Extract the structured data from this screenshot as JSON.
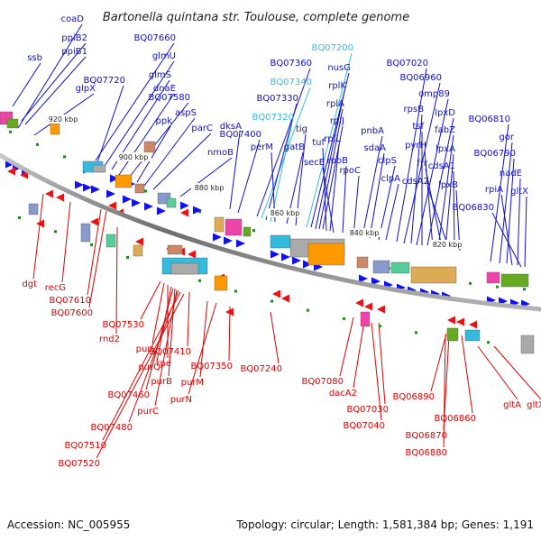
{
  "title": "Bartonella quintana str. Toulouse, complete genome",
  "footer": {
    "accession": "Accession: NC_005955",
    "summary": "Topology: circular; Length: 1,581,384 bp; Genes: 1,191"
  },
  "colors": {
    "forward_label": "#1010c8",
    "reverse_label": "#dd0000",
    "highlight_label": "#33bbee",
    "backbone": "#808080"
  },
  "kbp_ticks": [
    "920 kbp",
    "900 kbp",
    "880 kbp",
    "860 kbp",
    "840 kbp",
    "820 kbp"
  ],
  "forward_genes": [
    "coaD",
    "ssb",
    "ppiB2",
    "ppiB1",
    "glpX",
    "BQ07660",
    "BQ07720",
    "glmU",
    "glmS",
    "dnaE",
    "BQ07580",
    "ppk",
    "aspS",
    "parC",
    "nmoB",
    "dksA",
    "BQ07400",
    "BQ07360",
    "BQ07340",
    "BQ07330",
    "BQ07320",
    "perM",
    "gatB",
    "tig",
    "BQ07200",
    "nusG",
    "rplK",
    "rplA",
    "rplJ",
    "tuf",
    "rplL",
    "secE",
    "rpoB",
    "rpoC",
    "pnbA",
    "sdaA",
    "clpS",
    "clpA",
    "BQ07020",
    "BQ06960",
    "rpsB",
    "omp89",
    "tsf",
    "lpxD",
    "pyrH",
    "fabZ",
    "frr",
    "lpxA",
    "cdsA2",
    "cdsA1",
    "lpxB",
    "BQ06810",
    "gor",
    "BQ06790",
    "rpiA",
    "nadE",
    "BQ06830",
    "gltX"
  ],
  "highlight_genes": [
    "BQ07200",
    "BQ07340",
    "BQ07320"
  ],
  "reverse_genes": [
    "dgt",
    "recG",
    "BQ07610",
    "BQ07600",
    "rnd2",
    "BQ07530",
    "purL",
    "rpe",
    "purQ",
    "BQ07410",
    "purB",
    "BQ07460",
    "purM",
    "purC",
    "purN",
    "BQ07350",
    "BQ07480",
    "BQ07240",
    "BQ07510",
    "BQ07520",
    "BQ07080",
    "dacA2",
    "BQ07030",
    "BQ07040",
    "BQ06890",
    "BQ06860",
    "BQ06870",
    "BQ06880",
    "gltA",
    "gltX"
  ]
}
